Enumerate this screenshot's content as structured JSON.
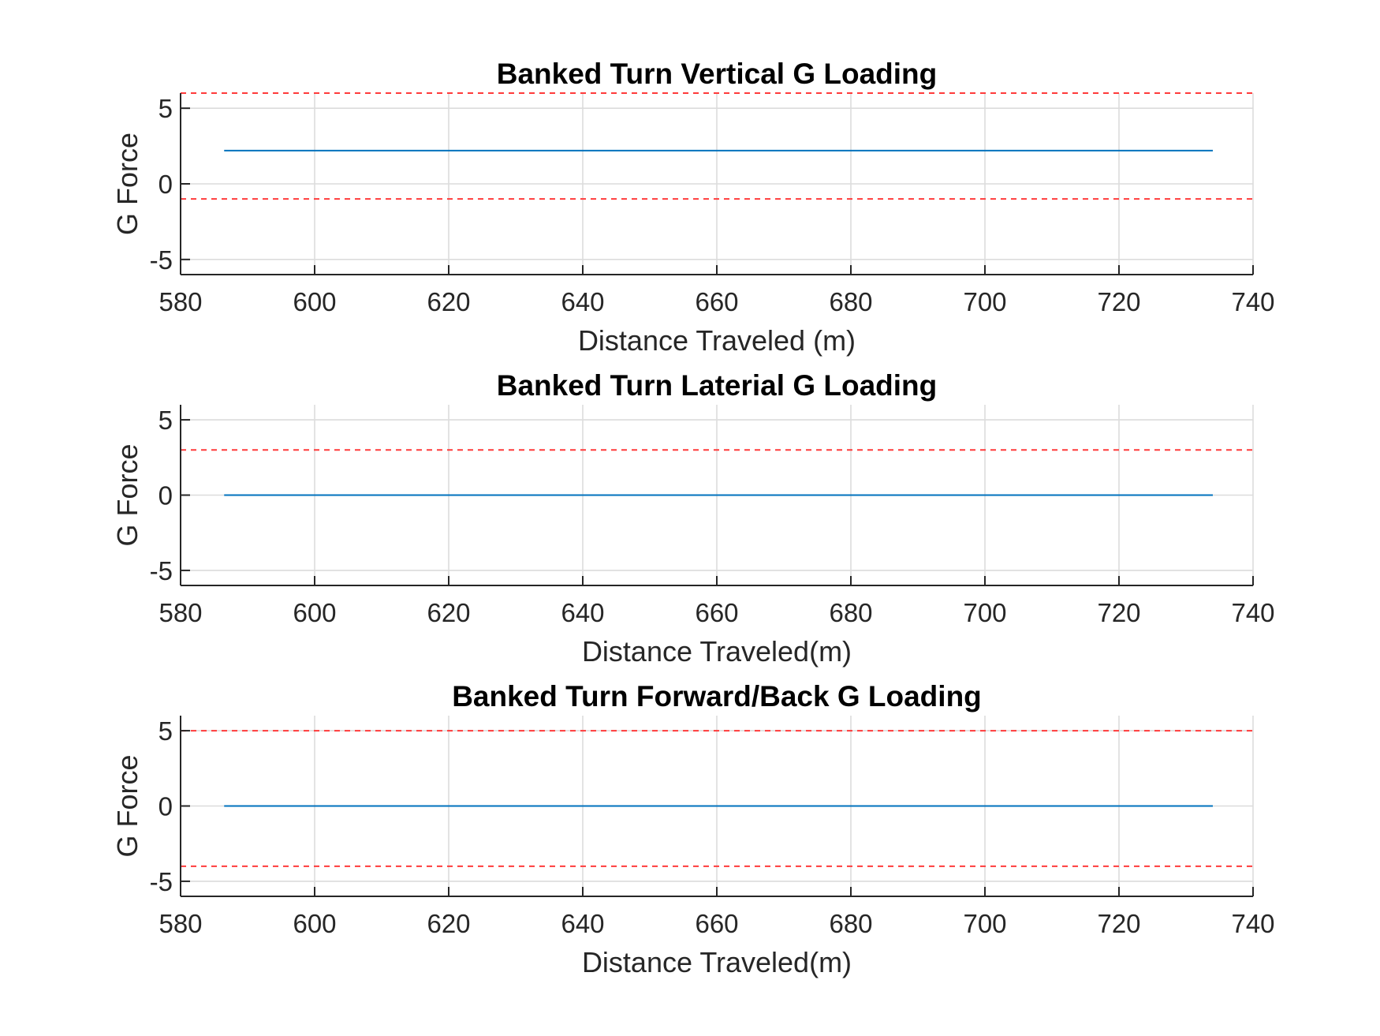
{
  "chart_data": [
    {
      "type": "line",
      "title": "Banked Turn Vertical G Loading",
      "xlabel": "Distance Traveled (m)",
      "ylabel": "G Force",
      "xlim": [
        580,
        740
      ],
      "ylim": [
        -6,
        6
      ],
      "xticks": [
        580,
        600,
        620,
        640,
        660,
        680,
        700,
        720,
        740
      ],
      "yticks": [
        -5,
        0,
        5
      ],
      "grid": true,
      "series": [
        {
          "x": [
            586.5,
            734
          ],
          "y": [
            2.2,
            2.2
          ],
          "color": "#0072bd",
          "style": "solid"
        }
      ],
      "limits": [
        {
          "y": 6,
          "color": "#ff3b3b",
          "style": "dashed"
        },
        {
          "y": -1,
          "color": "#ff3b3b",
          "style": "dashed"
        }
      ]
    },
    {
      "type": "line",
      "title": "Banked Turn Laterial G Loading",
      "xlabel": "Distance Traveled(m)",
      "ylabel": "G Force",
      "xlim": [
        580,
        740
      ],
      "ylim": [
        -6,
        6
      ],
      "xticks": [
        580,
        600,
        620,
        640,
        660,
        680,
        700,
        720,
        740
      ],
      "yticks": [
        -5,
        0,
        5
      ],
      "grid": true,
      "series": [
        {
          "x": [
            586.5,
            734
          ],
          "y": [
            0,
            0
          ],
          "color": "#0072bd",
          "style": "solid"
        }
      ],
      "limits": [
        {
          "y": 3,
          "color": "#ff3b3b",
          "style": "dashed"
        }
      ]
    },
    {
      "type": "line",
      "title": "Banked Turn Forward/Back G Loading",
      "xlabel": "Distance Traveled(m)",
      "ylabel": "G Force",
      "xlim": [
        580,
        740
      ],
      "ylim": [
        -6,
        6
      ],
      "xticks": [
        580,
        600,
        620,
        640,
        660,
        680,
        700,
        720,
        740
      ],
      "yticks": [
        -5,
        0,
        5
      ],
      "grid": true,
      "series": [
        {
          "x": [
            586.5,
            734
          ],
          "y": [
            0,
            0
          ],
          "color": "#0072bd",
          "style": "solid"
        }
      ],
      "limits": [
        {
          "y": 5,
          "color": "#ff3b3b",
          "style": "dashed"
        },
        {
          "y": -4,
          "color": "#ff3b3b",
          "style": "dashed"
        }
      ]
    }
  ]
}
